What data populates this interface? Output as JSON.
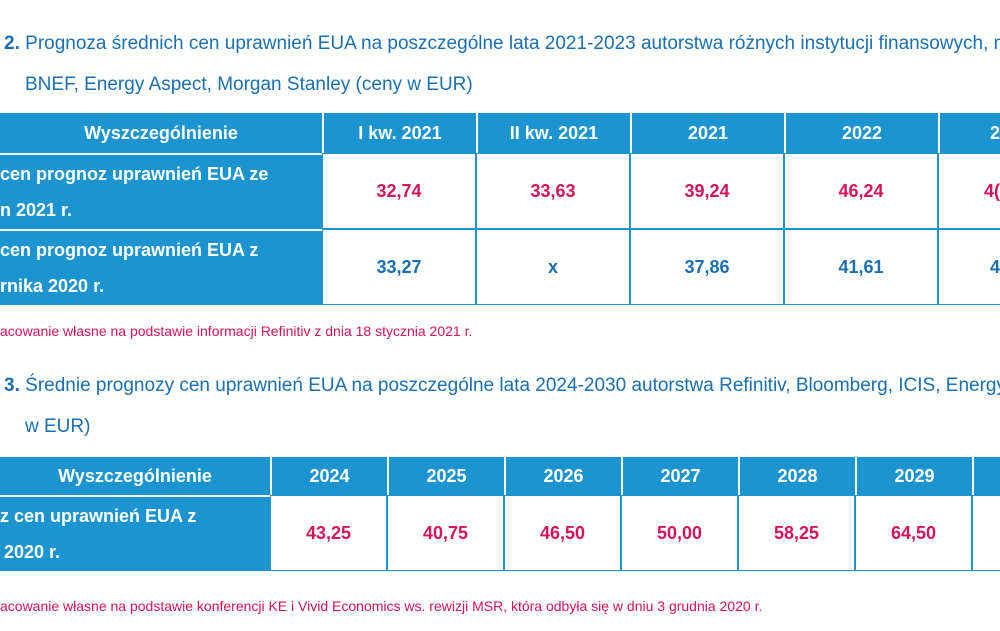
{
  "table2": {
    "caption_num": "2.",
    "caption_line1": "Prognoza średnich cen uprawnień EUA na poszczególne lata 2021-2023 autorstwa różnych instytucji finansowych, m.",
    "caption_line2": "BNEF, Energy Aspect, Morgan Stanley (ceny w EUR)",
    "headers": [
      "Wyszczególnienie",
      "I kw. 2021",
      "II kw. 2021",
      "2021",
      "2022",
      "2"
    ],
    "rows": [
      {
        "label_line1": "cen prognoz uprawnień EUA ze",
        "label_line2": "n 2021 r.",
        "values": [
          "32,74",
          "33,63",
          "39,24",
          "46,24",
          "4("
        ]
      },
      {
        "label_line1": "cen prognoz uprawnień EUA z",
        "label_line2": "rnika 2020 r.",
        "values": [
          "33,27",
          "x",
          "37,86",
          "41,61",
          "4"
        ]
      }
    ],
    "source": "acowanie własne na podstawie informacji Refinitiv z dnia 18 stycznia 2021 r."
  },
  "table3": {
    "caption_num": "3.",
    "caption_line1": "Średnie prognozy cen uprawnień EUA na poszczególne lata 2024-2030 autorstwa Refinitiv, Bloomberg, ICIS, Energy As",
    "caption_line2": "w EUR)",
    "headers": [
      "Wyszczególnienie",
      "2024",
      "2025",
      "2026",
      "2027",
      "2028",
      "2029",
      ""
    ],
    "rows": [
      {
        "label_line1": "z cen uprawnień EUA z",
        "label_line2": "2020 r.",
        "values": [
          "43,25",
          "40,75",
          "46,50",
          "50,00",
          "58,25",
          "64,50",
          ""
        ]
      }
    ],
    "source": "acowanie własne na podstawie konferencji KE i Vivid Economics ws. rewizji MSR, która odbyła się w dniu 3 grudnia 2020 r."
  },
  "colors": {
    "header_bg": "#1b94cf",
    "caption": "#1a6fb0",
    "value_red": "#d4145a",
    "value_blue": "#1a6fb0"
  }
}
